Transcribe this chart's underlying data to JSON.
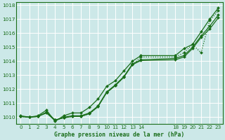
{
  "bg_color": "#cce8e8",
  "grid_color": "#ffffff",
  "line_color": "#1a6e1a",
  "marker_color": "#1a6e1a",
  "title": "Graphe pression niveau de la mer (hPa)",
  "xlim": [
    -0.5,
    23.5
  ],
  "ylim": [
    1009.5,
    1018.2
  ],
  "yticks": [
    1010,
    1011,
    1012,
    1013,
    1014,
    1015,
    1016,
    1017,
    1018
  ],
  "xtick_labels": [
    "0",
    "1",
    "2",
    "3",
    "4",
    "5",
    "6",
    "7",
    "8",
    "9",
    "10",
    "11",
    "12",
    "13",
    "14",
    "",
    "",
    "",
    "18",
    "19",
    "20",
    "21",
    "22",
    "23"
  ],
  "xtick_pos": [
    0,
    1,
    2,
    3,
    4,
    5,
    6,
    7,
    8,
    9,
    10,
    11,
    12,
    13,
    14,
    15,
    16,
    17,
    18,
    19,
    20,
    21,
    22,
    23
  ],
  "series": [
    {
      "x": [
        0,
        1,
        2,
        3,
        4,
        5,
        6,
        7,
        8,
        9,
        10,
        11,
        12,
        13,
        14,
        18,
        19,
        20,
        21,
        22,
        23
      ],
      "y": [
        1010.05,
        1010.0,
        1010.05,
        1010.3,
        1009.75,
        1010.0,
        1010.1,
        1010.1,
        1010.3,
        1010.8,
        1011.8,
        1012.3,
        1012.9,
        1013.8,
        1014.1,
        1014.2,
        1014.4,
        1015.0,
        1015.8,
        1016.5,
        1017.3
      ],
      "style": "-",
      "marker": "D",
      "markersize": 2.0,
      "linewidth": 0.9
    },
    {
      "x": [
        0,
        1,
        2,
        3,
        4,
        5,
        6,
        7,
        8,
        9,
        10,
        11,
        12,
        13,
        14,
        18,
        19,
        20,
        21,
        22,
        23
      ],
      "y": [
        1010.05,
        1010.0,
        1010.05,
        1010.35,
        1009.8,
        1009.95,
        1010.05,
        1010.05,
        1010.25,
        1010.75,
        1011.75,
        1012.25,
        1012.85,
        1013.75,
        1014.05,
        1014.1,
        1014.3,
        1014.9,
        1015.7,
        1016.3,
        1017.1
      ],
      "style": "-",
      "marker": "D",
      "markersize": 2.0,
      "linewidth": 0.9
    },
    {
      "x": [
        0,
        1,
        2,
        3,
        4,
        5,
        6,
        7,
        8,
        9,
        10,
        11,
        12,
        13,
        14,
        18,
        19,
        20,
        21,
        22,
        23
      ],
      "y": [
        1010.05,
        1010.0,
        1010.05,
        1010.35,
        1009.8,
        1009.95,
        1010.05,
        1010.05,
        1010.25,
        1010.75,
        1011.75,
        1012.25,
        1012.85,
        1013.75,
        1014.3,
        1014.3,
        1014.6,
        1015.2,
        1014.6,
        1016.9,
        1017.6
      ],
      "style": ":",
      "marker": "D",
      "markersize": 2.0,
      "linewidth": 0.9
    },
    {
      "x": [
        0,
        1,
        2,
        3,
        4,
        5,
        6,
        7,
        8,
        9,
        10,
        11,
        12,
        13,
        14,
        18,
        19,
        20,
        21,
        22,
        23
      ],
      "y": [
        1010.1,
        1010.0,
        1010.1,
        1010.5,
        1009.7,
        1010.1,
        1010.3,
        1010.3,
        1010.7,
        1011.3,
        1012.2,
        1012.6,
        1013.3,
        1014.0,
        1014.4,
        1014.4,
        1014.9,
        1015.2,
        1016.1,
        1017.0,
        1017.8
      ],
      "style": "-",
      "marker": "D",
      "markersize": 2.0,
      "linewidth": 0.9
    }
  ]
}
